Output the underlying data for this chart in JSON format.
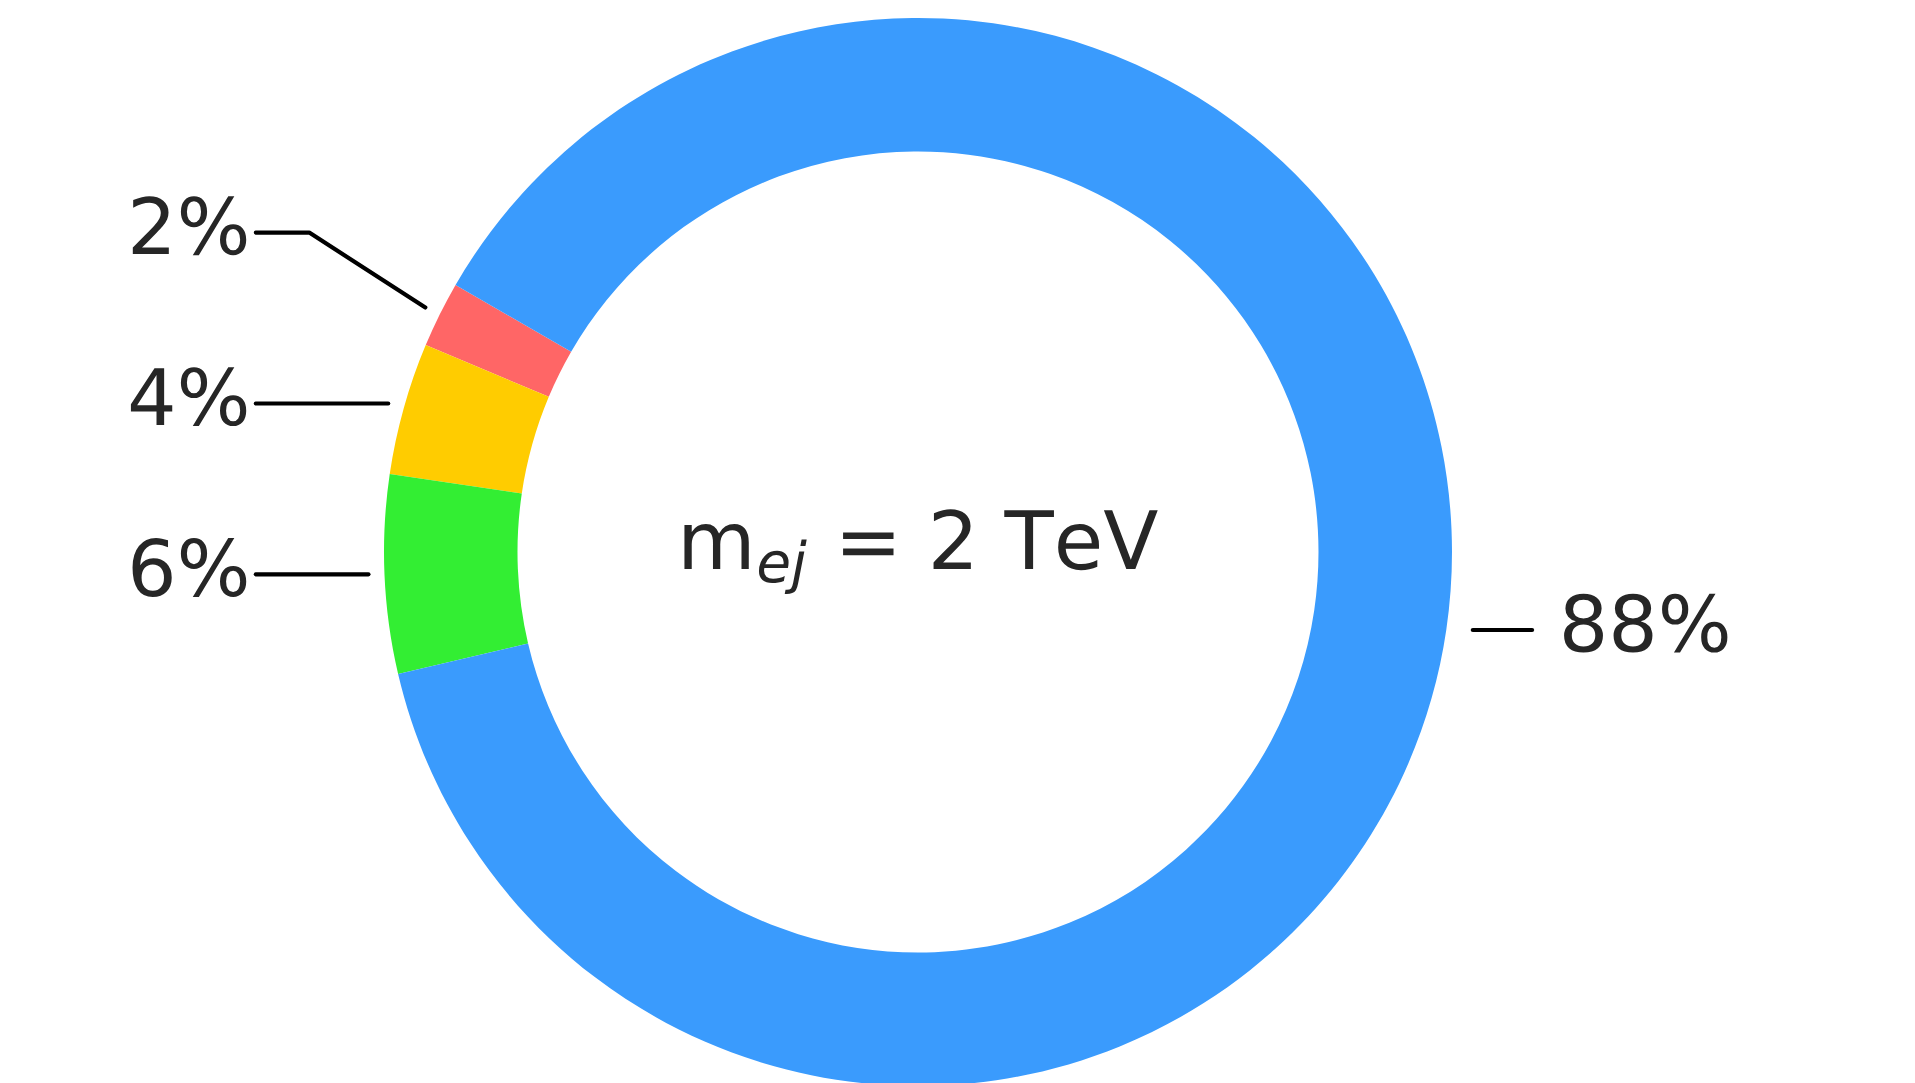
{
  "chart_data": {
    "type": "donut",
    "annotations": [
      "m$_{ej}$ = 2 TeV"
    ],
    "categories": [
      null,
      null,
      null,
      null
    ],
    "values": [
      2,
      4,
      6,
      88
    ],
    "value_labels": [
      "2%",
      "4%",
      "6%",
      "88%"
    ],
    "colors": [
      "#ff6666",
      "#ffcc00",
      "#33ee33",
      "#3a9bfd"
    ]
  }
}
